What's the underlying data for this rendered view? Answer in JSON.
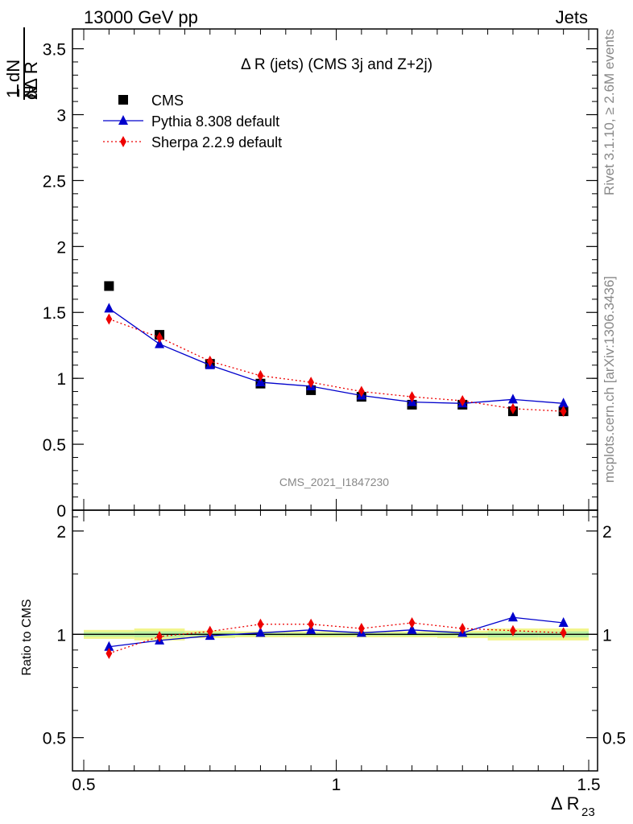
{
  "header": {
    "left": "13000 GeV pp",
    "right": "Jets"
  },
  "side_labels": {
    "rivet": "Rivet 3.1.10, ≥ 2.6M events",
    "mcplots": "mcplots.cern.ch [arXiv:1306.3436]"
  },
  "chart_data": [
    {
      "type": "scatter",
      "panel": "main",
      "title": "Δ R (jets) (CMS 3j and Z+2j)",
      "watermark": "CMS_2021_I1847230",
      "ylabel": {
        "one": "1",
        "n": "N",
        "dn": "dN",
        "dd": "dΔ R",
        "sub": "23"
      },
      "xlim": [
        0.5,
        1.5
      ],
      "ylim": [
        0,
        3.65
      ],
      "yticks": [
        0,
        0.5,
        1,
        1.5,
        2,
        2.5,
        3,
        3.5
      ],
      "ytick_labels": [
        "0",
        "0.5",
        "1",
        "1.5",
        "2",
        "2.5",
        "3",
        "3.5"
      ],
      "x": [
        0.55,
        0.65,
        0.75,
        0.85,
        0.95,
        1.05,
        1.15,
        1.25,
        1.35,
        1.45
      ],
      "legend_position": "top-left",
      "series": [
        {
          "name": "CMS",
          "marker": "square",
          "color": "#000000",
          "line": "none",
          "values": [
            1.7,
            1.33,
            1.11,
            0.96,
            0.91,
            0.86,
            0.8,
            0.8,
            0.75,
            0.75
          ]
        },
        {
          "name": "Pythia 8.308 default",
          "marker": "triangle",
          "color": "#0000cc",
          "line": "solid",
          "values": [
            1.53,
            1.26,
            1.1,
            0.97,
            0.94,
            0.87,
            0.82,
            0.81,
            0.84,
            0.81
          ]
        },
        {
          "name": "Sherpa 2.2.9 default",
          "marker": "diamond",
          "color": "#ee0000",
          "line": "dotted",
          "values": [
            1.45,
            1.31,
            1.13,
            1.02,
            0.97,
            0.9,
            0.86,
            0.83,
            0.77,
            0.75
          ]
        }
      ]
    },
    {
      "type": "scatter",
      "panel": "ratio",
      "ylabel": "Ratio to CMS",
      "xlabel": {
        "main": "Δ R",
        "sub": "23"
      },
      "xlim": [
        0.5,
        1.5
      ],
      "ylim": [
        0.4,
        2.3
      ],
      "log_y": true,
      "xticks": [
        0.5,
        1,
        1.5
      ],
      "xtick_labels": [
        "0.5",
        "1",
        "1.5"
      ],
      "yticks": [
        0.5,
        1,
        2
      ],
      "ytick_labels": [
        "0.5",
        "1",
        "2"
      ],
      "x": [
        0.55,
        0.65,
        0.75,
        0.85,
        0.95,
        1.05,
        1.15,
        1.25,
        1.35,
        1.45
      ],
      "band_colors": {
        "outer": "#f2f58c",
        "inner": "#b8f0a0"
      },
      "reference_line": 1,
      "series": [
        {
          "name": "Pythia 8.308 default",
          "marker": "triangle",
          "color": "#0000cc",
          "line": "solid",
          "values": [
            0.92,
            0.96,
            0.99,
            1.01,
            1.03,
            1.01,
            1.03,
            1.01,
            1.12,
            1.08
          ]
        },
        {
          "name": "Sherpa 2.2.9 default",
          "marker": "diamond",
          "color": "#ee0000",
          "line": "dotted",
          "values": [
            0.88,
            0.985,
            1.02,
            1.07,
            1.07,
            1.04,
            1.08,
            1.04,
            1.025,
            1.01
          ]
        }
      ],
      "uncertainty_band": [
        0.03,
        0.04,
        0.025,
        0.02,
        0.02,
        0.02,
        0.02,
        0.025,
        0.04,
        0.04
      ]
    }
  ]
}
